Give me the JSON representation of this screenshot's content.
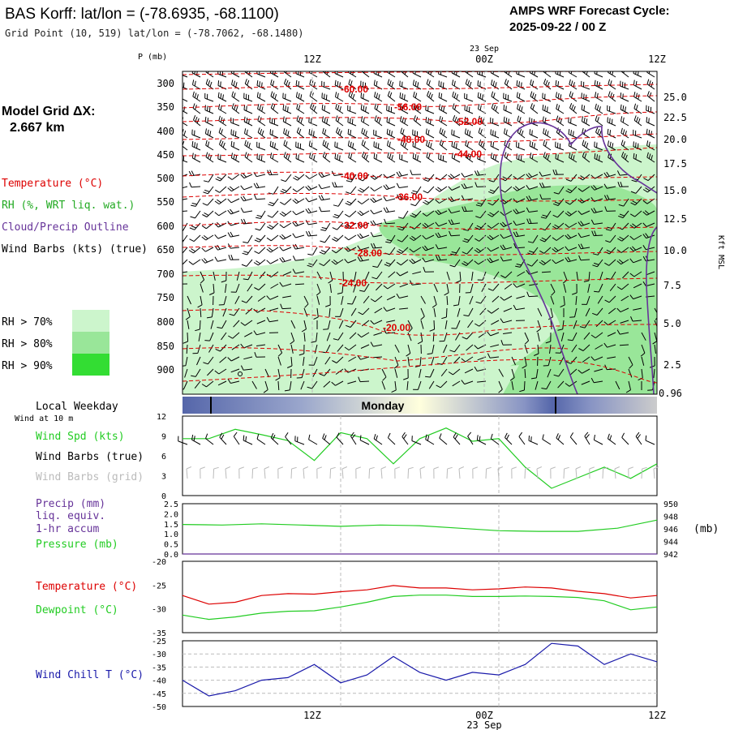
{
  "header": {
    "title": "BAS Korff:  lat/lon = (-78.6935, -68.1100)",
    "subtitle": "Grid Point (10, 519) lat/lon = (-78.7062, -68.1480)",
    "cycle_label": "AMPS WRF Forecast Cycle:",
    "cycle_value": "2025-09-22 / 00  Z"
  },
  "time_axis": {
    "date_label": "23 Sep",
    "ticks": [
      "12Z",
      "00Z",
      "12Z"
    ]
  },
  "left_panel": {
    "model_grid_label": "Model Grid ΔX:",
    "model_grid_value": "2.667 km",
    "legend_temperature": "Temperature (°C)",
    "legend_rh": "RH (%, WRT liq. wat.)",
    "legend_cloud": "Cloud/Precip Outline",
    "legend_wind": "Wind Barbs (kts) (true)",
    "rh_70": "RH > 70%",
    "rh_80": "RH > 80%",
    "rh_90": "RH > 90%",
    "local_weekday": "Local Weekday",
    "wind_10m": "Wind at 10 m",
    "wind_spd": "Wind Spd (kts)",
    "wind_barbs_true": "Wind Barbs (true)",
    "wind_barbs_grid": "Wind Barbs (grid)",
    "precip_1": "Precip (mm)",
    "precip_2": "liq. equiv.",
    "precip_3": "1-hr accum",
    "pressure": "Pressure (mb)",
    "temperature": "Temperature (°C)",
    "dewpoint": "Dewpoint (°C)",
    "wind_chill": "Wind Chill T (°C)"
  },
  "weekday_bar": {
    "label": "Monday"
  },
  "colors": {
    "temperature": "#dd0000",
    "rh70": "#ccf5cc",
    "rh80": "#99e699",
    "rh90": "#33dd33",
    "cloud": "#663399",
    "wind_spd": "#22cc22",
    "dewpoint": "#22cc22",
    "wind_chill": "#1a1aaa",
    "day_bar": "#5566aa"
  },
  "chart_data": [
    {
      "type": "time-height",
      "title": "Upper-air time-height cross section",
      "ylabel": "P (mb)",
      "y_left_ticks": [
        "300",
        "350",
        "400",
        "450",
        "500",
        "550",
        "600",
        "650",
        "700",
        "750",
        "800",
        "850",
        "900"
      ],
      "y_right_label": "Kft MSL",
      "y_right_ticks": [
        "25.0",
        "22.5",
        "20.0",
        "17.5",
        "15.0",
        "12.5",
        "10.0",
        "7.5",
        "5.0",
        "2.5",
        "0.96"
      ],
      "temperature_contours": [
        {
          "label": "-60.00",
          "value": -60
        },
        {
          "label": "-56.00",
          "value": -56
        },
        {
          "label": "-52.00",
          "value": -52
        },
        {
          "label": "-48.00",
          "value": -48
        },
        {
          "label": "-44.00",
          "value": -44
        },
        {
          "label": "-40.00",
          "value": -40
        },
        {
          "label": "-36.00",
          "value": -36
        },
        {
          "label": "-32.00",
          "value": -32
        },
        {
          "label": "-28.00",
          "value": -28
        },
        {
          "label": "-24.00",
          "value": -24
        },
        {
          "label": "-20.00",
          "value": -20
        }
      ]
    },
    {
      "type": "line",
      "title": "Wind Spd (kts)",
      "hours": [
        0,
        2,
        4,
        6,
        8,
        10,
        12,
        14,
        16,
        18,
        20,
        22,
        24,
        26,
        28,
        30,
        32,
        34,
        36
      ],
      "values": [
        8.6,
        8.6,
        10,
        9.2,
        8.3,
        5.3,
        9.5,
        8.6,
        4.8,
        8.6,
        10.2,
        8.2,
        8.6,
        4.3,
        1.1,
        2.7,
        4.3,
        2.6,
        4.8
      ],
      "yticks": [
        "0",
        "3",
        "6",
        "9",
        "12"
      ],
      "ylim": [
        0,
        12
      ]
    },
    {
      "type": "line",
      "title": "Precip / Pressure",
      "hours": [
        0,
        3,
        6,
        9,
        12,
        15,
        18,
        21,
        24,
        27,
        30,
        33,
        36
      ],
      "pressure_mb": [
        946.7,
        946.6,
        946.8,
        946.6,
        946.4,
        946.6,
        946.5,
        946.1,
        945.7,
        945.6,
        945.6,
        946.1,
        947.4
      ],
      "precip_mm": [
        0,
        0,
        0,
        0,
        0,
        0,
        0,
        0,
        0,
        0,
        0,
        0,
        0
      ],
      "yticks_left": [
        "0.0",
        "0.5",
        "1.0",
        "1.5",
        "2.0",
        "2.5"
      ],
      "yticks_right": [
        "942",
        "944",
        "946",
        "948",
        "950"
      ],
      "ylabel_right": "(mb)",
      "ylim_left": [
        0,
        2.5
      ],
      "ylim_right": [
        942,
        950
      ]
    },
    {
      "type": "line",
      "title": "Temperature / Dewpoint",
      "hours": [
        0,
        2,
        4,
        6,
        8,
        10,
        12,
        14,
        16,
        18,
        20,
        22,
        24,
        26,
        28,
        30,
        32,
        34,
        36
      ],
      "temperature": [
        -27.2,
        -29,
        -28.6,
        -27.2,
        -26.8,
        -26.9,
        -26.4,
        -26,
        -25.1,
        -25.6,
        -25.6,
        -26,
        -25.8,
        -25.4,
        -25.6,
        -26.3,
        -26.8,
        -27.7,
        -27.2
      ],
      "dewpoint": [
        -31.3,
        -32.2,
        -31.7,
        -30.9,
        -30.5,
        -30.4,
        -29.6,
        -28.6,
        -27.4,
        -27.1,
        -27.1,
        -27.4,
        -27.4,
        -27.3,
        -27.4,
        -27.6,
        -28.3,
        -30.2,
        -29.6
      ],
      "yticks": [
        "-20",
        "-25",
        "-30",
        "-35"
      ],
      "ylim": [
        -35,
        -20
      ]
    },
    {
      "type": "line",
      "title": "Wind Chill T (°C)",
      "hours": [
        0,
        2,
        4,
        6,
        8,
        10,
        12,
        14,
        16,
        18,
        20,
        22,
        24,
        26,
        28,
        30,
        32,
        34,
        36
      ],
      "values": [
        -40,
        -46,
        -44,
        -40,
        -39,
        -34,
        -41,
        -38,
        -31,
        -37,
        -40,
        -37,
        -38,
        -34,
        -26,
        -27,
        -34,
        -30,
        -33
      ],
      "yticks": [
        "-25",
        "-30",
        "-35",
        "-40",
        "-45",
        "-50"
      ],
      "ylim": [
        -50,
        -25
      ]
    }
  ]
}
